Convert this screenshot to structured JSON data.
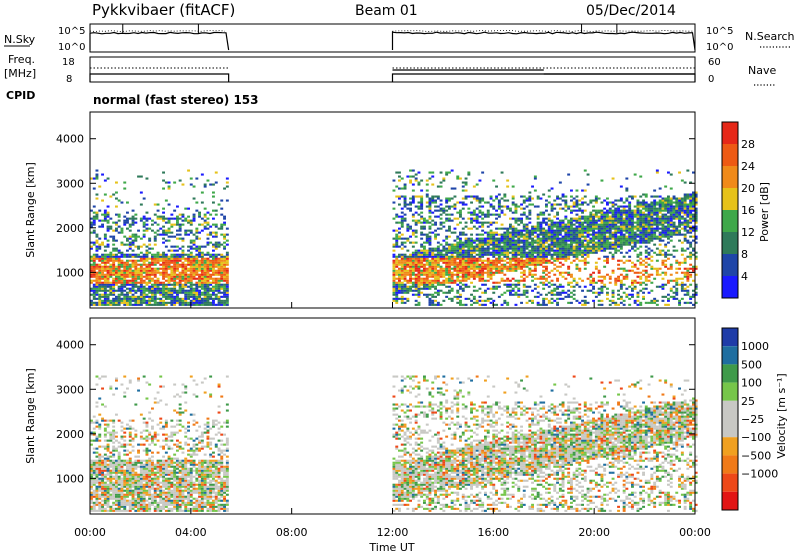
{
  "header": {
    "station": "Pykkvibaer (fitACF)",
    "beam": "Beam 01",
    "date": "05/Dec/2014"
  },
  "left_labels": {
    "nsky": "N.Sky",
    "freq_line1": "Freq.",
    "freq_line2": "[MHz]",
    "cpid": "CPID"
  },
  "right_labels": {
    "nsearch": "N.Search",
    "nave": "Nave"
  },
  "cpid_text": "normal (fast stereo) 153",
  "colors": {
    "power": [
      "#1a1aff",
      "#1f45a8",
      "#2f7a5a",
      "#3fa84a",
      "#e6c21a",
      "#f08a1a",
      "#ee5a14",
      "#e62818"
    ],
    "velocity": [
      "#1f3ca8",
      "#1f6ea0",
      "#3f9a4a",
      "#76c64a",
      "#c8c8c4",
      "#c8c8c4",
      "#f0a020",
      "#f07a18",
      "#ee4818",
      "#e21414"
    ]
  },
  "chart_data": [
    {
      "type": "line",
      "panel": "noise",
      "ylabel": "N.Sky",
      "y2label": "N.Search",
      "ytick_labels": [
        "10^5",
        "10^0"
      ],
      "y2tick_labels": [
        "10^5",
        "10^0"
      ],
      "x_range": [
        0,
        24
      ],
      "segments": [
        [
          0,
          5.5
        ],
        [
          12,
          24
        ]
      ]
    },
    {
      "type": "line",
      "panel": "freq-nave",
      "ylabel": "Freq. [MHz]",
      "y2label": "Nave",
      "yticks": [
        8,
        18
      ],
      "y2ticks": [
        0,
        60
      ],
      "x_range": [
        0,
        24
      ],
      "segments": [
        [
          0,
          5.5
        ],
        [
          12,
          24
        ]
      ]
    },
    {
      "type": "heatmap",
      "panel": "power",
      "ylabel": "Slant Range [km]",
      "yticks": [
        1000,
        2000,
        3000,
        4000
      ],
      "ylim": [
        200,
        4600
      ],
      "x_range": [
        0,
        24
      ],
      "colorbar_label": "Power [dB]",
      "colorbar_ticks": [
        "4",
        "8",
        "12",
        "16",
        "20",
        "24",
        "28"
      ],
      "data_blocks": [
        [
          0,
          5.5
        ],
        [
          12,
          24
        ]
      ]
    },
    {
      "type": "heatmap",
      "panel": "velocity",
      "ylabel": "Slant Range [km]",
      "yticks": [
        1000,
        2000,
        3000,
        4000
      ],
      "ylim": [
        200,
        4600
      ],
      "x_range": [
        0,
        24
      ],
      "xtick_labels": [
        "00:00",
        "04:00",
        "08:00",
        "12:00",
        "16:00",
        "20:00",
        "00:00"
      ],
      "xlabel": "Time UT",
      "colorbar_label": "Velocity [m s⁻¹]",
      "colorbar_ticks": [
        "1000",
        "500",
        "100",
        "25",
        "−25",
        "−100",
        "−500",
        "−1000"
      ],
      "data_blocks": [
        [
          0,
          5.5
        ],
        [
          12,
          24
        ]
      ]
    }
  ]
}
